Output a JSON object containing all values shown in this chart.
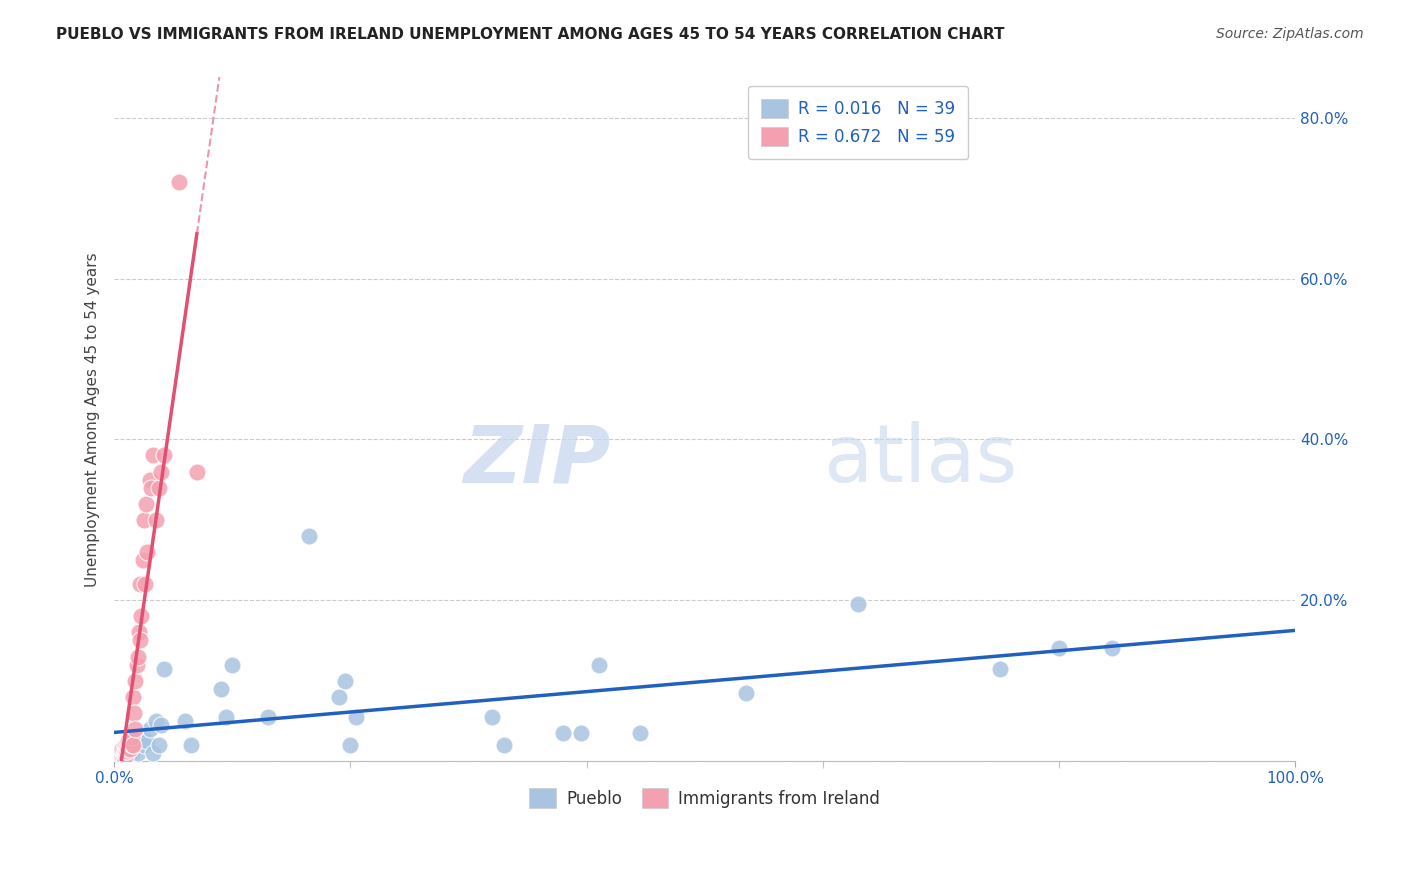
{
  "title": "PUEBLO VS IMMIGRANTS FROM IRELAND UNEMPLOYMENT AMONG AGES 45 TO 54 YEARS CORRELATION CHART",
  "source": "Source: ZipAtlas.com",
  "ylabel": "Unemployment Among Ages 45 to 54 years",
  "xlim": [
    0,
    1.0
  ],
  "ylim": [
    0,
    0.85
  ],
  "xticks": [
    0.0,
    1.0
  ],
  "xticklabels": [
    "0.0%",
    "100.0%"
  ],
  "yticks": [
    0.0,
    0.2,
    0.4,
    0.6,
    0.8
  ],
  "yticklabels": [
    "",
    "20.0%",
    "40.0%",
    "60.0%",
    "80.0%"
  ],
  "pueblo_R": "0.016",
  "pueblo_N": "39",
  "ireland_R": "0.672",
  "ireland_N": "59",
  "pueblo_color": "#a8c4e0",
  "ireland_color": "#f4a0b0",
  "pueblo_line_color": "#2060c0",
  "ireland_line_color": "#e05070",
  "watermark_zip": "ZIP",
  "watermark_atlas": "atlas",
  "pueblo_x": [
    0.005,
    0.008,
    0.01,
    0.012,
    0.015,
    0.016,
    0.018,
    0.02,
    0.022,
    0.025,
    0.028,
    0.03,
    0.033,
    0.035,
    0.038,
    0.04,
    0.042,
    0.06,
    0.065,
    0.09,
    0.095,
    0.1,
    0.13,
    0.165,
    0.19,
    0.195,
    0.2,
    0.205,
    0.32,
    0.33,
    0.38,
    0.395,
    0.41,
    0.445,
    0.535,
    0.63,
    0.75,
    0.8,
    0.845
  ],
  "pueblo_y": [
    0.01,
    0.015,
    0.01,
    0.02,
    0.01,
    0.02,
    0.025,
    0.01,
    0.025,
    0.02,
    0.025,
    0.04,
    0.01,
    0.05,
    0.02,
    0.045,
    0.115,
    0.05,
    0.02,
    0.09,
    0.055,
    0.12,
    0.055,
    0.28,
    0.08,
    0.1,
    0.02,
    0.055,
    0.055,
    0.02,
    0.035,
    0.035,
    0.12,
    0.035,
    0.085,
    0.195,
    0.115,
    0.14,
    0.14
  ],
  "ireland_x": [
    0.002,
    0.003,
    0.003,
    0.004,
    0.004,
    0.004,
    0.005,
    0.005,
    0.005,
    0.006,
    0.006,
    0.006,
    0.007,
    0.007,
    0.007,
    0.007,
    0.008,
    0.008,
    0.008,
    0.009,
    0.009,
    0.009,
    0.01,
    0.01,
    0.01,
    0.011,
    0.011,
    0.012,
    0.012,
    0.013,
    0.013,
    0.014,
    0.015,
    0.015,
    0.016,
    0.016,
    0.017,
    0.018,
    0.018,
    0.019,
    0.02,
    0.021,
    0.022,
    0.022,
    0.023,
    0.024,
    0.025,
    0.026,
    0.027,
    0.028,
    0.03,
    0.031,
    0.033,
    0.035,
    0.038,
    0.04,
    0.042,
    0.055,
    0.07
  ],
  "ireland_y": [
    0.005,
    0.005,
    0.008,
    0.005,
    0.008,
    0.01,
    0.005,
    0.008,
    0.012,
    0.005,
    0.008,
    0.01,
    0.005,
    0.008,
    0.012,
    0.015,
    0.005,
    0.01,
    0.015,
    0.008,
    0.012,
    0.02,
    0.008,
    0.012,
    0.02,
    0.012,
    0.018,
    0.015,
    0.025,
    0.015,
    0.025,
    0.025,
    0.02,
    0.03,
    0.02,
    0.08,
    0.06,
    0.04,
    0.1,
    0.12,
    0.13,
    0.16,
    0.15,
    0.22,
    0.18,
    0.25,
    0.3,
    0.22,
    0.32,
    0.26,
    0.35,
    0.34,
    0.38,
    0.3,
    0.34,
    0.36,
    0.38,
    0.72,
    0.36
  ]
}
